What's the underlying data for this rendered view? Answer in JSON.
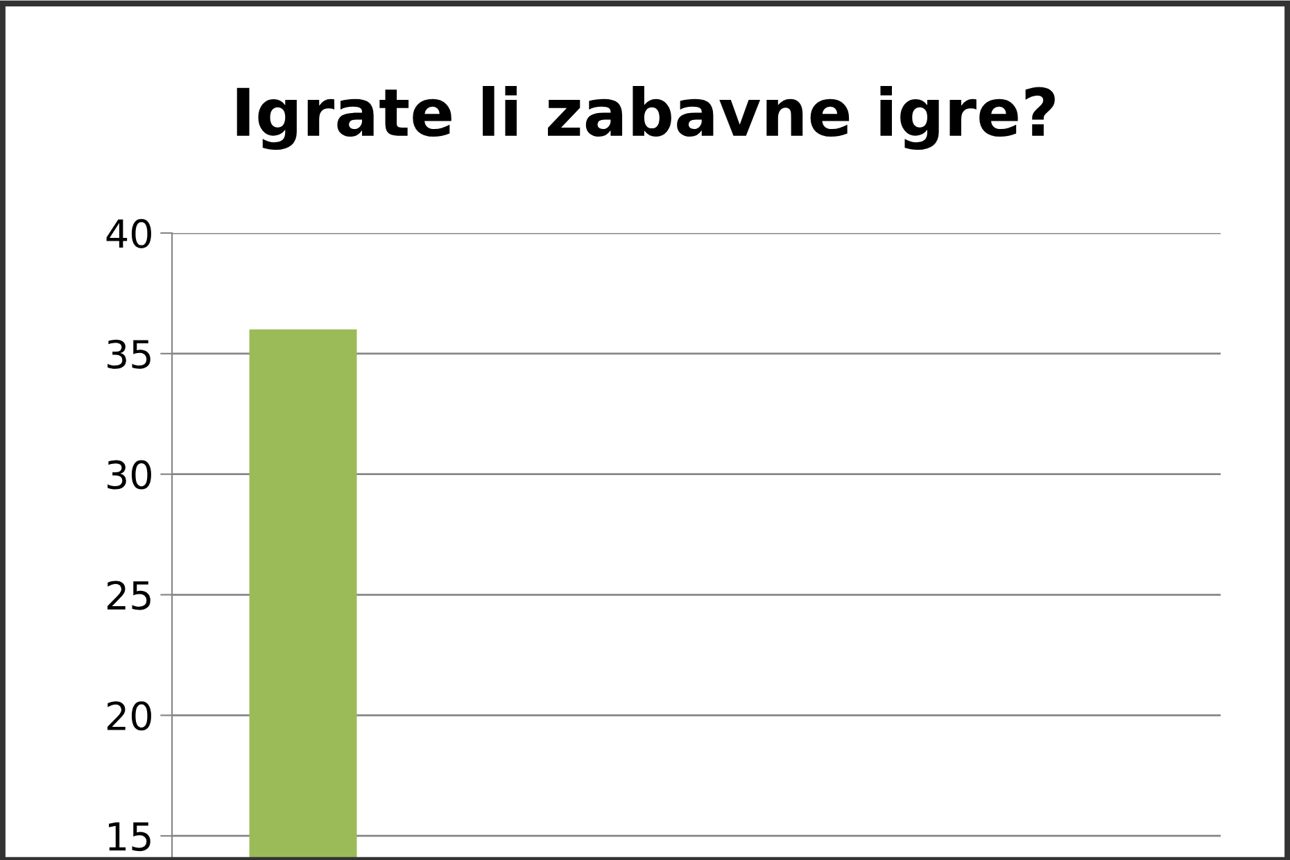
{
  "chart_data": {
    "type": "bar",
    "title": "Igrate li zabavne igre?",
    "categories": [
      null,
      null,
      null,
      null
    ],
    "values": [
      36,
      null,
      null,
      null
    ],
    "color": "#9bbb59",
    "ylim": [
      14,
      40
    ],
    "yticks": [
      15,
      20,
      25,
      30,
      35,
      40
    ],
    "grid": "y"
  }
}
